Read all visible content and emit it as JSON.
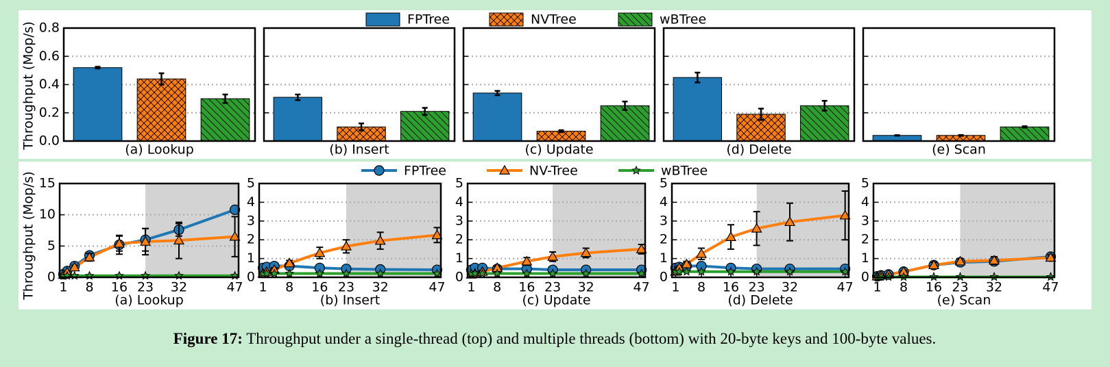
{
  "chart_data": [
    {
      "type": "bar",
      "title": "(a) Lookup",
      "ylabel": "Throughput (Mop/s)",
      "ylim": [
        0,
        0.8
      ],
      "yticks": [
        {
          "value": 0,
          "label": "0.0"
        },
        0.2,
        0.4,
        0.6,
        0.8
      ],
      "ytick_labels": true,
      "grid": true,
      "series": [
        {
          "name": "FPTree",
          "color": "#1f77b4",
          "values": [
            0.52
          ],
          "errors": [
            0.006
          ]
        },
        {
          "name": "NVTree",
          "color": "#ff7f0e",
          "hatch": "xx",
          "values": [
            0.44
          ],
          "errors": [
            0.04
          ]
        },
        {
          "name": "wBTree",
          "color": "#2ca02c",
          "hatch": "\\\\",
          "values": [
            0.3
          ],
          "errors": [
            0.03
          ]
        }
      ]
    },
    {
      "type": "bar",
      "title": "(b) Insert",
      "ylim": [
        0,
        0.8
      ],
      "yticks": [
        0,
        0.2,
        0.4,
        0.6,
        0.8
      ],
      "ytick_labels": false,
      "grid": true,
      "series": [
        {
          "color": "#1f77b4",
          "values": [
            0.31
          ],
          "errors": [
            0.02
          ]
        },
        {
          "color": "#ff7f0e",
          "hatch": "xx",
          "values": [
            0.1
          ],
          "errors": [
            0.025
          ]
        },
        {
          "color": "#2ca02c",
          "hatch": "\\\\",
          "values": [
            0.21
          ],
          "errors": [
            0.025
          ]
        }
      ]
    },
    {
      "type": "bar",
      "title": "(c) Update",
      "ylim": [
        0,
        0.8
      ],
      "yticks": [
        0,
        0.2,
        0.4,
        0.6,
        0.8
      ],
      "ytick_labels": false,
      "grid": true,
      "series": [
        {
          "color": "#1f77b4",
          "values": [
            0.34
          ],
          "errors": [
            0.015
          ]
        },
        {
          "color": "#ff7f0e",
          "hatch": "xx",
          "values": [
            0.07
          ],
          "errors": [
            0.007
          ]
        },
        {
          "color": "#2ca02c",
          "hatch": "\\\\",
          "values": [
            0.25
          ],
          "errors": [
            0.03
          ]
        }
      ]
    },
    {
      "type": "bar",
      "title": "(d) Delete",
      "ylim": [
        0,
        0.8
      ],
      "yticks": [
        0,
        0.2,
        0.4,
        0.6,
        0.8
      ],
      "ytick_labels": false,
      "grid": true,
      "series": [
        {
          "color": "#1f77b4",
          "values": [
            0.45
          ],
          "errors": [
            0.035
          ]
        },
        {
          "color": "#ff7f0e",
          "hatch": "xx",
          "values": [
            0.19
          ],
          "errors": [
            0.04
          ]
        },
        {
          "color": "#2ca02c",
          "hatch": "\\\\",
          "values": [
            0.25
          ],
          "errors": [
            0.035
          ]
        }
      ]
    },
    {
      "type": "bar",
      "title": "(e) Scan",
      "ylim": [
        0,
        0.8
      ],
      "yticks": [
        0,
        0.2,
        0.4,
        0.6,
        0.8
      ],
      "ytick_labels": false,
      "grid": true,
      "series": [
        {
          "color": "#1f77b4",
          "values": [
            0.04
          ],
          "errors": [
            0.002
          ]
        },
        {
          "color": "#ff7f0e",
          "hatch": "xx",
          "values": [
            0.04
          ],
          "errors": [
            0.003
          ]
        },
        {
          "color": "#2ca02c",
          "hatch": "\\\\",
          "values": [
            0.1
          ],
          "errors": [
            0.005
          ]
        }
      ]
    },
    {
      "type": "line",
      "title": "(a) Lookup",
      "ylabel": "Throughput (Mop/s)",
      "x": [
        1,
        2,
        4,
        8,
        16,
        23,
        32,
        47
      ],
      "xlim": [
        0,
        48
      ],
      "xticks": [
        1,
        8,
        16,
        23,
        32,
        47
      ],
      "ylim": [
        0,
        15
      ],
      "yticks": [
        0,
        5,
        10,
        15
      ],
      "grid": true,
      "shade": [
        23,
        48
      ],
      "series": [
        {
          "name": "FPTree",
          "color": "#1f77b4",
          "marker": "circle",
          "values": [
            0.5,
            1.0,
            1.8,
            3.5,
            5.2,
            6.0,
            7.6,
            10.8
          ],
          "errors": [
            0.1,
            0.2,
            0.3,
            0.5,
            1.5,
            1.8,
            1.0,
            0.3
          ]
        },
        {
          "name": "NV-Tree",
          "color": "#ff7f0e",
          "marker": "triangle",
          "values": [
            0.4,
            0.8,
            1.6,
            3.2,
            5.4,
            5.7,
            5.9,
            6.5
          ],
          "errors": [
            0.1,
            0.2,
            0.3,
            0.6,
            1.2,
            2.1,
            2.9,
            3.2
          ]
        },
        {
          "name": "wBTree",
          "color": "#2ca02c",
          "marker": "star",
          "values": [
            0.2,
            0.25,
            0.25,
            0.25,
            0.25,
            0.25,
            0.25,
            0.25
          ]
        }
      ]
    },
    {
      "type": "line",
      "title": "(b) Insert",
      "x": [
        1,
        2,
        4,
        8,
        16,
        23,
        32,
        47
      ],
      "xlim": [
        0,
        48
      ],
      "xticks": [
        1,
        8,
        16,
        23,
        32,
        47
      ],
      "ylim": [
        0,
        5
      ],
      "yticks": [
        0,
        1,
        2,
        3,
        4,
        5
      ],
      "grid": true,
      "shade": [
        23,
        48
      ],
      "series": [
        {
          "color": "#1f77b4",
          "marker": "circle",
          "values": [
            0.5,
            0.55,
            0.6,
            0.6,
            0.5,
            0.45,
            0.42,
            0.4
          ]
        },
        {
          "color": "#ff7f0e",
          "marker": "triangle",
          "values": [
            0.2,
            0.3,
            0.4,
            0.75,
            1.3,
            1.65,
            1.95,
            2.25
          ],
          "errors": [
            0.05,
            0.05,
            0.1,
            0.15,
            0.3,
            0.35,
            0.45,
            0.4
          ]
        },
        {
          "color": "#2ca02c",
          "marker": "star",
          "values": [
            0.2,
            0.2,
            0.2,
            0.2,
            0.2,
            0.2,
            0.2,
            0.2
          ]
        }
      ]
    },
    {
      "type": "line",
      "title": "(c) Update",
      "x": [
        1,
        2,
        4,
        8,
        16,
        23,
        32,
        47
      ],
      "xlim": [
        0,
        48
      ],
      "xticks": [
        1,
        8,
        16,
        23,
        32,
        47
      ],
      "ylim": [
        0,
        5
      ],
      "yticks": [
        0,
        1,
        2,
        3,
        4,
        5
      ],
      "grid": true,
      "shade": [
        23,
        48
      ],
      "series": [
        {
          "color": "#1f77b4",
          "marker": "circle",
          "values": [
            0.4,
            0.5,
            0.5,
            0.45,
            0.45,
            0.4,
            0.4,
            0.4
          ]
        },
        {
          "color": "#ff7f0e",
          "marker": "triangle",
          "values": [
            0.15,
            0.2,
            0.3,
            0.5,
            0.85,
            1.1,
            1.3,
            1.5
          ],
          "errors": [
            0.05,
            0.05,
            0.05,
            0.1,
            0.2,
            0.25,
            0.25,
            0.25
          ]
        },
        {
          "color": "#2ca02c",
          "marker": "star",
          "values": [
            0.2,
            0.2,
            0.2,
            0.2,
            0.2,
            0.2,
            0.2,
            0.2
          ]
        }
      ]
    },
    {
      "type": "line",
      "title": "(d) Delete",
      "x": [
        1,
        2,
        4,
        8,
        16,
        23,
        32,
        47
      ],
      "xlim": [
        0,
        48
      ],
      "xticks": [
        1,
        8,
        16,
        23,
        32,
        47
      ],
      "ylim": [
        0,
        5
      ],
      "yticks": [
        0,
        1,
        2,
        3,
        4,
        5
      ],
      "grid": true,
      "shade": [
        23,
        48
      ],
      "series": [
        {
          "color": "#1f77b4",
          "marker": "circle",
          "values": [
            0.5,
            0.55,
            0.6,
            0.6,
            0.5,
            0.45,
            0.45,
            0.45
          ]
        },
        {
          "color": "#ff7f0e",
          "marker": "triangle",
          "values": [
            0.3,
            0.5,
            0.7,
            1.25,
            2.15,
            2.6,
            2.95,
            3.3
          ],
          "errors": [
            0.1,
            0.1,
            0.15,
            0.3,
            0.65,
            0.9,
            1.0,
            1.3
          ]
        },
        {
          "color": "#2ca02c",
          "marker": "star",
          "values": [
            0.3,
            0.3,
            0.3,
            0.3,
            0.3,
            0.3,
            0.3,
            0.3
          ]
        }
      ]
    },
    {
      "type": "line",
      "title": "(e) Scan",
      "x": [
        1,
        2,
        4,
        8,
        16,
        23,
        32,
        47
      ],
      "xlim": [
        0,
        48
      ],
      "xticks": [
        1,
        8,
        16,
        23,
        32,
        47
      ],
      "ylim": [
        0,
        5
      ],
      "yticks": [
        0,
        1,
        2,
        3,
        4,
        5
      ],
      "grid": true,
      "shade": [
        23,
        48
      ],
      "series": [
        {
          "color": "#1f77b4",
          "marker": "circle",
          "values": [
            0.05,
            0.1,
            0.15,
            0.3,
            0.65,
            0.8,
            0.85,
            1.1
          ],
          "errors": [
            0.01,
            0.02,
            0.03,
            0.05,
            0.1,
            0.15,
            0.2,
            0.15
          ]
        },
        {
          "color": "#ff7f0e",
          "marker": "triangle",
          "values": [
            0.05,
            0.1,
            0.15,
            0.3,
            0.65,
            0.85,
            0.9,
            1.05
          ],
          "errors": [
            0.02,
            0.02,
            0.03,
            0.05,
            0.15,
            0.15,
            0.2,
            0.15
          ]
        },
        {
          "color": "#2ca02c",
          "marker": "star",
          "values": [
            0.02,
            0.02,
            0.02,
            0.02,
            0.02,
            0.02,
            0.02,
            0.02
          ]
        }
      ]
    }
  ],
  "caption": {
    "label": "Figure 17:",
    "text": "Throughput under a single-thread (top) and multiple threads (bottom) with 20-byte keys and 100-byte values."
  }
}
